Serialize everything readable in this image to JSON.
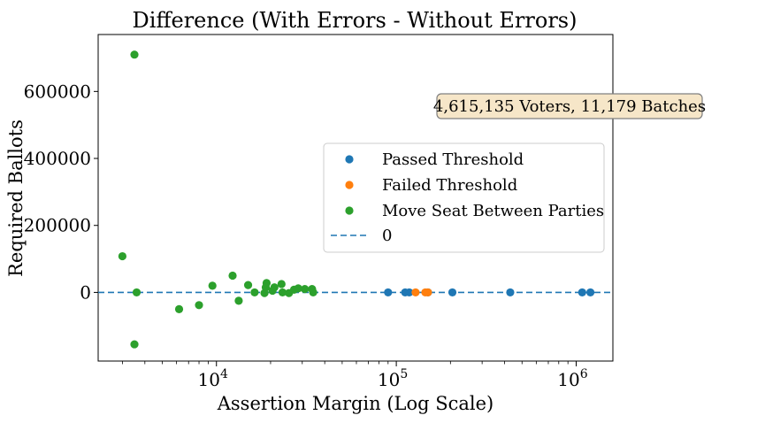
{
  "chart_data": {
    "type": "scatter",
    "title": "Difference (With Errors - Without Errors)",
    "xlabel": "Assertion Margin (Log Scale)",
    "ylabel": "Required Ballots",
    "xscale": "log",
    "xlim": [
      2200,
      1600000
    ],
    "ylim": [
      -205000,
      770000
    ],
    "grid": false,
    "legend_position": "center-right",
    "annotation": "4,615,135 Voters, 11,179 Batches",
    "x_ticks": [
      {
        "value": 10000,
        "base": "10",
        "exp": "4"
      },
      {
        "value": 100000,
        "base": "10",
        "exp": "5"
      },
      {
        "value": 1000000,
        "base": "10",
        "exp": "6"
      }
    ],
    "y_ticks": [
      {
        "value": 0,
        "label": "0"
      },
      {
        "value": 200000,
        "label": "200000"
      },
      {
        "value": 400000,
        "label": "400000"
      },
      {
        "value": 600000,
        "label": "600000"
      }
    ],
    "series": [
      {
        "name": "Passed Threshold",
        "color": "#1f77b4",
        "points": [
          {
            "x": 90000,
            "y": 0
          },
          {
            "x": 112000,
            "y": 0
          },
          {
            "x": 118000,
            "y": 0
          },
          {
            "x": 150000,
            "y": 0
          },
          {
            "x": 205000,
            "y": 0
          },
          {
            "x": 430000,
            "y": 0
          },
          {
            "x": 1080000,
            "y": 0
          },
          {
            "x": 1200000,
            "y": 0
          }
        ]
      },
      {
        "name": "Failed Threshold",
        "color": "#ff7f0e",
        "points": [
          {
            "x": 128000,
            "y": 0
          },
          {
            "x": 145000,
            "y": 0
          },
          {
            "x": 150000,
            "y": 0
          }
        ]
      },
      {
        "name": "Move Seat Between Parties",
        "color": "#2ca02c",
        "points": [
          {
            "x": 3000,
            "y": 108000
          },
          {
            "x": 3500,
            "y": 710000
          },
          {
            "x": 3500,
            "y": -155000
          },
          {
            "x": 3600,
            "y": 0
          },
          {
            "x": 6200,
            "y": -50000
          },
          {
            "x": 8000,
            "y": -38000
          },
          {
            "x": 9500,
            "y": 20000
          },
          {
            "x": 12300,
            "y": 50000
          },
          {
            "x": 13300,
            "y": -25000
          },
          {
            "x": 15000,
            "y": 22000
          },
          {
            "x": 16300,
            "y": 0
          },
          {
            "x": 18500,
            "y": -2000
          },
          {
            "x": 18800,
            "y": 15000
          },
          {
            "x": 19000,
            "y": 28000
          },
          {
            "x": 20500,
            "y": 5000
          },
          {
            "x": 21000,
            "y": 15000
          },
          {
            "x": 23000,
            "y": 25000
          },
          {
            "x": 23300,
            "y": 0
          },
          {
            "x": 25300,
            "y": -2000
          },
          {
            "x": 27000,
            "y": 8000
          },
          {
            "x": 28500,
            "y": 12000
          },
          {
            "x": 31000,
            "y": 10000
          },
          {
            "x": 34000,
            "y": 10000
          },
          {
            "x": 34500,
            "y": 0
          }
        ]
      }
    ],
    "reference_line": {
      "name": "0",
      "y": 0,
      "color": "#1f77b4",
      "style": "dashed"
    }
  }
}
